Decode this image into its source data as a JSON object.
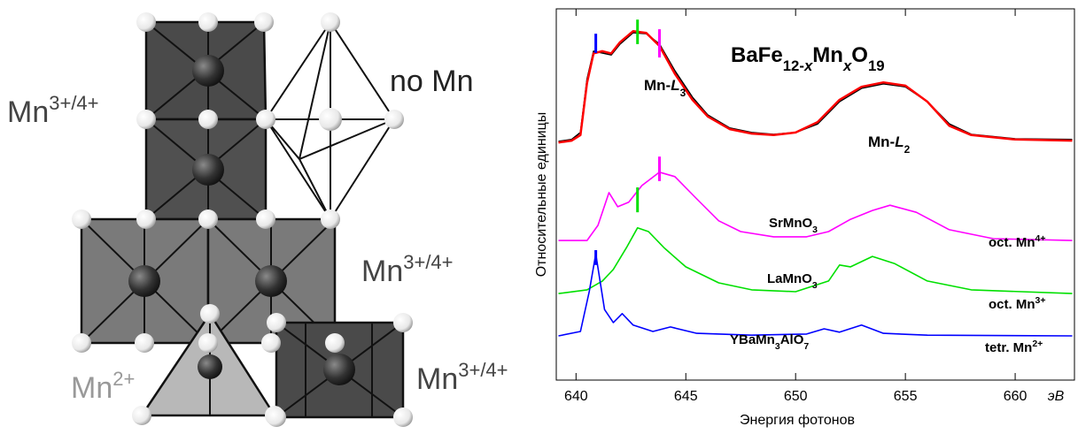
{
  "structure": {
    "labels": [
      {
        "base": "Mn",
        "sup": "3+/4+"
      },
      {
        "base": "Mn",
        "sup": "3+/4+"
      },
      {
        "base": "Mn",
        "sup": "3+/4+"
      },
      {
        "base": "Mn",
        "sup": "2+"
      }
    ],
    "no_mn": "no Mn"
  },
  "chart_data": {
    "type": "line",
    "title": [
      {
        "text": "BaFe"
      },
      {
        "text": "12-",
        "style": "sub"
      },
      {
        "text": "x",
        "style": "italic-sub"
      },
      {
        "text": "Mn"
      },
      {
        "text": "x",
        "style": "italic-sub"
      },
      {
        "text": "O"
      },
      {
        "text": "19",
        "style": "sub"
      }
    ],
    "xlabel": "Энергия фотонов",
    "ylabel": "Относительные единицы",
    "x_unit": "эВ",
    "xlim": [
      639.1,
      662.7
    ],
    "ylim": [
      0,
      100
    ],
    "xticks": [
      640,
      645,
      650,
      655,
      660
    ],
    "series": [
      {
        "color": "#000000",
        "x": [
          639.2,
          639.8,
          640.2,
          640.5,
          640.8,
          641.2,
          641.6,
          642.0,
          642.6,
          643.2,
          643.8,
          644.5,
          645.3,
          646,
          647,
          648,
          649,
          650,
          651,
          652,
          653,
          654,
          655,
          656,
          657,
          658,
          660,
          662.6
        ],
        "values": [
          64.3,
          64.8,
          66.7,
          81.0,
          88.6,
          88.1,
          87.6,
          90.5,
          93.6,
          93.3,
          90.5,
          83.3,
          76.2,
          71.4,
          67.9,
          66.7,
          66.2,
          66.7,
          69.0,
          75.0,
          78.6,
          79.8,
          79.0,
          75.0,
          69.0,
          66.2,
          65.0,
          64.8
        ]
      },
      {
        "color": "#ff0000",
        "x": [
          639.2,
          639.8,
          640.2,
          640.5,
          640.8,
          641.2,
          641.6,
          642.0,
          642.6,
          643.2,
          643.8,
          644.5,
          645.3,
          646,
          647,
          648,
          649,
          650,
          651,
          652,
          653,
          654,
          655,
          656,
          657,
          658,
          660,
          662.6
        ],
        "values": [
          64.0,
          64.5,
          66.0,
          80.0,
          88.0,
          88.6,
          88.0,
          91.0,
          94.0,
          93.5,
          90.0,
          82.5,
          75.5,
          71.0,
          67.6,
          66.4,
          66.0,
          66.7,
          69.5,
          75.5,
          79.0,
          80.2,
          79.3,
          75.0,
          68.5,
          66.0,
          64.8,
          64.5
        ]
      },
      {
        "color": "#ff00ff",
        "label": [
          {
            "text": "SrMnO"
          },
          {
            "text": "3",
            "style": "sub"
          }
        ],
        "x": [
          639.2,
          640.5,
          641,
          641.5,
          641.9,
          642.4,
          643,
          643.8,
          644.5,
          645.5,
          646.5,
          647.5,
          649,
          650.5,
          651.5,
          652.5,
          653.5,
          654.3,
          655.5,
          657,
          659,
          662.6
        ],
        "values": [
          37.6,
          37.6,
          41.7,
          50.5,
          46.7,
          47.9,
          52.4,
          56.0,
          54.8,
          48.8,
          42.9,
          40.0,
          38.6,
          38.6,
          40.0,
          43.3,
          45.7,
          47.1,
          45.2,
          40.5,
          38.1,
          37.6
        ]
      },
      {
        "color": "#00e000",
        "label": [
          {
            "text": "LaMnO"
          },
          {
            "text": "3",
            "style": "sub"
          }
        ],
        "x": [
          639.2,
          640.5,
          641.2,
          641.7,
          642.3,
          642.8,
          643.3,
          644,
          645,
          646.5,
          648,
          650,
          651.5,
          652,
          652.5,
          653.5,
          654.5,
          656,
          658,
          662.6
        ],
        "values": [
          23.3,
          24.3,
          26.7,
          29.8,
          35.7,
          41.0,
          40.0,
          35.7,
          30.5,
          26.2,
          24.3,
          23.8,
          26.7,
          31.0,
          30.5,
          33.3,
          31.4,
          26.7,
          24.3,
          23.3
        ]
      },
      {
        "color": "#0000ff",
        "label": [
          {
            "text": "YBaMn"
          },
          {
            "text": "3",
            "style": "sub"
          },
          {
            "text": "AlO"
          },
          {
            "text": "7",
            "style": "sub"
          }
        ],
        "x": [
          639.2,
          640.2,
          640.6,
          640.9,
          641.3,
          641.7,
          642.1,
          642.6,
          643.5,
          644.3,
          645.5,
          648,
          650.5,
          651.3,
          652,
          653,
          654,
          656,
          662.6
        ],
        "values": [
          11.9,
          13.1,
          23.8,
          34.0,
          19.0,
          15.5,
          17.9,
          14.8,
          13.1,
          14.3,
          12.6,
          12.1,
          12.4,
          13.8,
          12.9,
          14.8,
          12.6,
          12.1,
          11.9
        ]
      }
    ],
    "markers": [
      {
        "x": 640.9,
        "y": [
          88.1,
          93.3
        ],
        "color": "#0000ff"
      },
      {
        "x": 642.8,
        "y": [
          90.5,
          97.1
        ],
        "color": "#00e000"
      },
      {
        "x": 643.8,
        "y": [
          86.9,
          94.5
        ],
        "color": "#ff00ff"
      },
      {
        "x": 643.8,
        "y": [
          53.6,
          60.2
        ],
        "color": "#ff00ff"
      },
      {
        "x": 642.8,
        "y": [
          45.2,
          51.9
        ],
        "color": "#00e000"
      },
      {
        "x": 640.9,
        "y": [
          31.0,
          35.0
        ],
        "color": "#0000ff"
      }
    ],
    "annotations": [
      [
        {
          "text": "Mn-"
        },
        {
          "text": "L",
          "style": "italic"
        },
        {
          "text": "3",
          "style": "sub"
        }
      ],
      [
        {
          "text": "Mn-"
        },
        {
          "text": "L",
          "style": "italic"
        },
        {
          "text": "2",
          "style": "sub"
        }
      ],
      [
        {
          "text": "oct. Mn"
        },
        {
          "text": "4+",
          "style": "sup"
        }
      ],
      [
        {
          "text": "oct. Mn"
        },
        {
          "text": "3+",
          "style": "sup"
        }
      ],
      [
        {
          "text": "tetr. Mn"
        },
        {
          "text": "2+",
          "style": "sup"
        }
      ]
    ]
  }
}
